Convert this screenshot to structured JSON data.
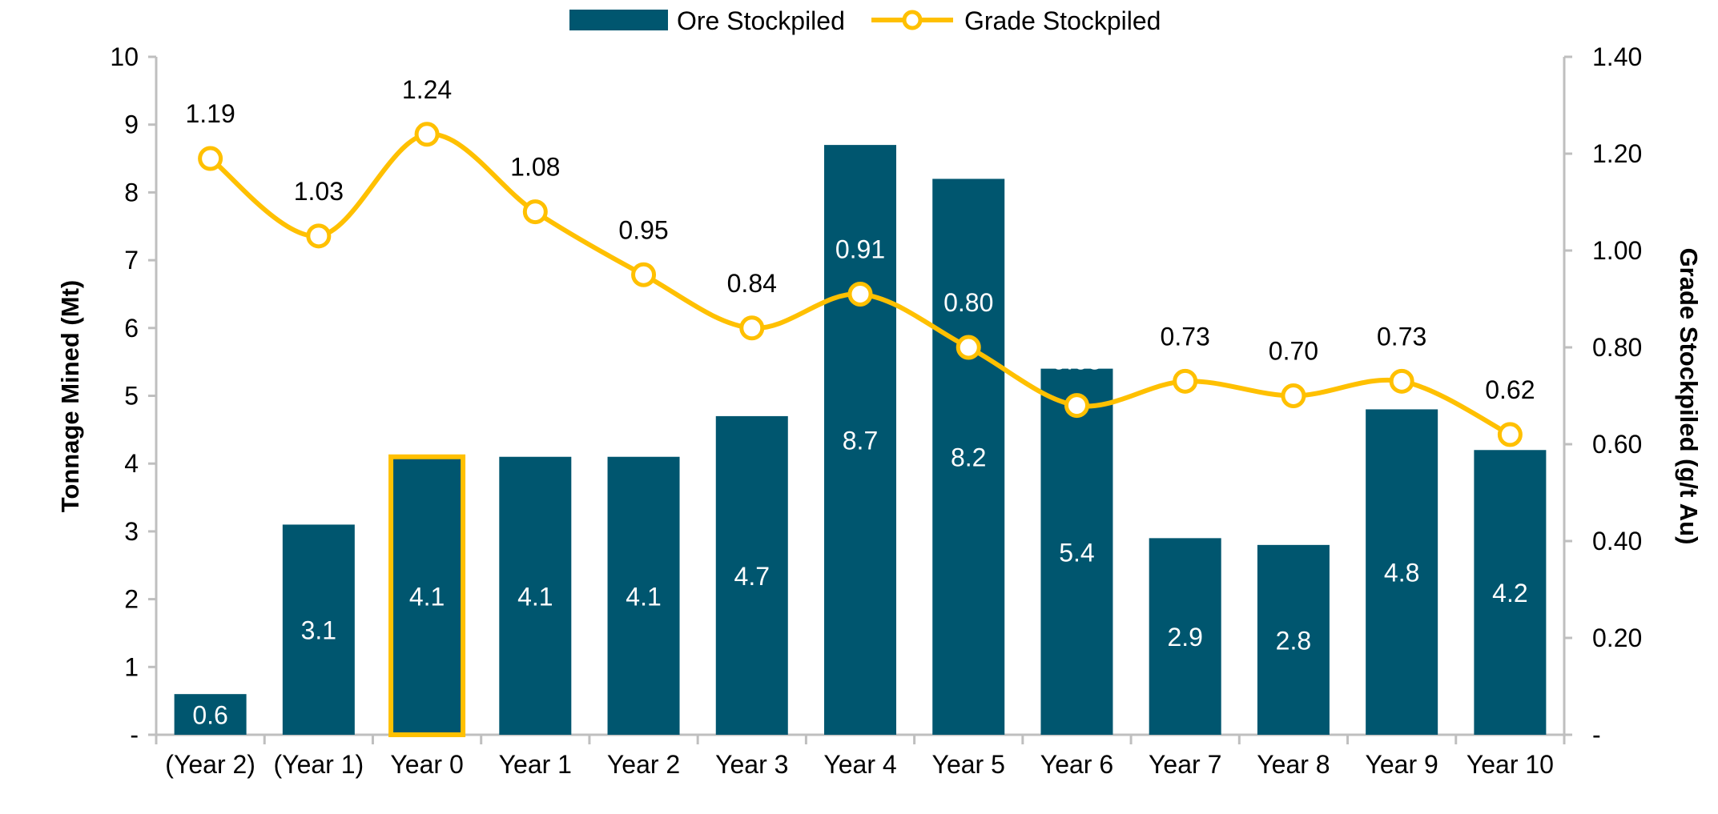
{
  "chart_data": {
    "type": "bar+line",
    "categories": [
      "(Year 2)",
      "(Year 1)",
      "Year 0",
      "Year 1",
      "Year 2",
      "Year 3",
      "Year 4",
      "Year 5",
      "Year 6",
      "Year 7",
      "Year 8",
      "Year 9",
      "Year 10"
    ],
    "series": [
      {
        "name": "Ore Stockpiled",
        "type": "bar",
        "axis": "left",
        "color": "#00566F",
        "values": [
          0.6,
          3.1,
          4.1,
          4.1,
          4.1,
          4.7,
          8.7,
          8.2,
          5.4,
          2.9,
          2.8,
          4.8,
          4.2
        ],
        "labels": [
          "0.6",
          "3.1",
          "4.1",
          "4.1",
          "4.1",
          "4.7",
          "8.7",
          "8.2",
          "5.4",
          "2.9",
          "2.8",
          "4.8",
          "4.2"
        ]
      },
      {
        "name": "Grade Stockpiled",
        "type": "line",
        "axis": "right",
        "color": "#FFC000",
        "smooth": true,
        "marker": "hollow-circle",
        "values": [
          1.19,
          1.03,
          1.24,
          1.08,
          0.95,
          0.84,
          0.91,
          0.8,
          0.68,
          0.73,
          0.7,
          0.73,
          0.62
        ],
        "labels": [
          "1.19",
          "1.03",
          "1.24",
          "1.08",
          "0.95",
          "0.84",
          "0.91",
          "0.80",
          "0.68",
          "0.73",
          "0.70",
          "0.73",
          "0.62"
        ]
      }
    ],
    "highlight_category": "Year 0",
    "highlight_color": "#FFC000",
    "ylabel": "Tonnage Mined (Mt)",
    "ylabel_right": "Grade Stockpiled (g/t Au)",
    "ylim": [
      0,
      10
    ],
    "ylim_right": [
      0,
      1.4
    ],
    "yticks": [
      "-",
      "1",
      "2",
      "3",
      "4",
      "5",
      "6",
      "7",
      "8",
      "9",
      "10"
    ],
    "yticks_right": [
      "-",
      "0.20",
      "0.40",
      "0.60",
      "0.80",
      "1.00",
      "1.20",
      "1.40"
    ],
    "legend": {
      "placement": "top",
      "entries": [
        "Ore Stockpiled",
        "Grade Stockpiled"
      ]
    },
    "grid": false
  }
}
